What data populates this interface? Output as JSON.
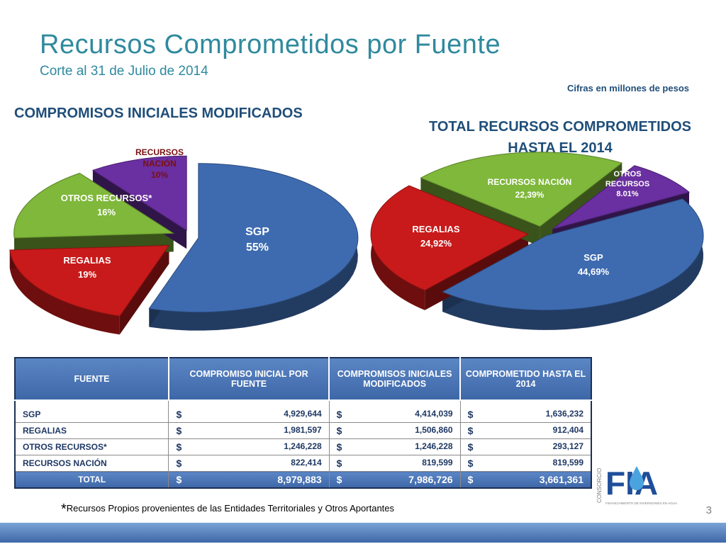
{
  "title": "Recursos Comprometidos por Fuente",
  "subtitle": "Corte al 31 de Julio de 2014",
  "units_note": "Cifras en millones de pesos",
  "colors": {
    "sgp": "#3e6bb0",
    "regalias": "#c81a1a",
    "otros": "#7fb83a",
    "nacion": "#6a2fa0",
    "title": "#2f8a9e",
    "header": "#4a74b6"
  },
  "chart_data": [
    {
      "type": "pie",
      "title": "COMPROMISOS INICIALES MODIFICADOS",
      "slices": [
        {
          "label": "SGP",
          "value": 55,
          "value_label": "55%",
          "color": "#3e6bb0"
        },
        {
          "label": "REGALIAS",
          "value": 19,
          "value_label": "19%",
          "color": "#c81a1a"
        },
        {
          "label": "OTROS RECURSOS*",
          "value": 16,
          "value_label": "16%",
          "color": "#7fb83a"
        },
        {
          "label": "RECURSOS NACIÓN",
          "value": 10,
          "value_label": "10%",
          "color": "#6a2fa0"
        }
      ]
    },
    {
      "type": "pie",
      "title": "TOTAL RECURSOS COMPROMETIDOS HASTA EL 2014",
      "slices": [
        {
          "label": "SGP",
          "value": 44.69,
          "value_label": "44,69%",
          "color": "#3e6bb0"
        },
        {
          "label": "REGALIAS",
          "value": 24.92,
          "value_label": "24,92%",
          "color": "#c81a1a"
        },
        {
          "label": "RECURSOS NACIÓN",
          "value": 22.39,
          "value_label": "22,39%",
          "color": "#7fb83a"
        },
        {
          "label": "OTROS RECURSOS",
          "value": 8.01,
          "value_label": "8.01%",
          "color": "#6a2fa0"
        }
      ]
    }
  ],
  "table": {
    "headers": [
      "FUENTE",
      "COMPROMISO INICIAL POR FUENTE",
      "COMPROMISOS INICIALES MODIFICADOS",
      "COMPROMETIDO HASTA EL 2014"
    ],
    "currency": "$",
    "rows": [
      {
        "fuente": "SGP",
        "inicial": "4,929,644",
        "modificados": "4,414,039",
        "comprometido": "1,636,232"
      },
      {
        "fuente": "REGALIAS",
        "inicial": "1,981,597",
        "modificados": "1,506,860",
        "comprometido": "912,404"
      },
      {
        "fuente": "OTROS RECURSOS*",
        "inicial": "1,246,228",
        "modificados": "1,246,228",
        "comprometido": "293,127"
      },
      {
        "fuente": "RECURSOS NACIÓN",
        "inicial": "822,414",
        "modificados": "819,599",
        "comprometido": "819,599"
      }
    ],
    "total": {
      "label": "TOTAL",
      "inicial": "8,979,883",
      "modificados": "7,986,726",
      "comprometido": "3,661,361"
    }
  },
  "footnote": "Recursos Propios provenientes de las Entidades Territoriales y Otros Aportantes",
  "footnote_star": "*",
  "page_number": "3",
  "logo": {
    "side": "CONSORCIO",
    "name": "FIA",
    "tagline": "FINANCIAMIENTO DE INVERSIONES EN AGUA"
  }
}
